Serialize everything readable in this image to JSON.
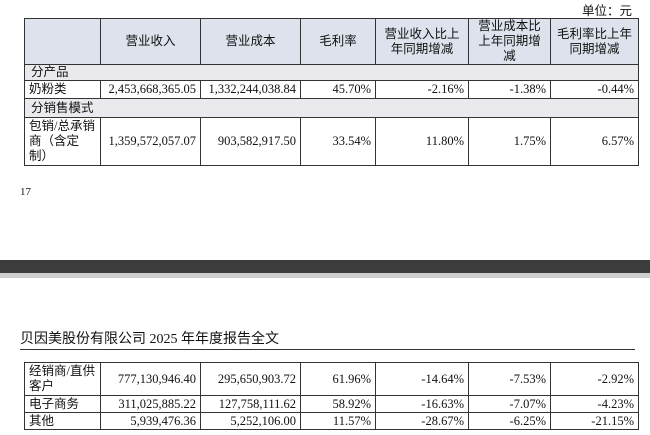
{
  "unit": "单位：元",
  "table_top": {
    "header": [
      "营业收入",
      "营业成本",
      "毛利率",
      "营业收入比上年同期增减",
      "营业成本比上年同期增减",
      "毛利率比上年同期增减"
    ],
    "sections": [
      {
        "title": "分产品",
        "rows": [
          [
            "奶粉类",
            "2,453,668,365.05",
            "1,332,244,038.84",
            "45.70%",
            "-2.16%",
            "-1.38%",
            "-0.44%"
          ]
        ]
      },
      {
        "title": "分销售模式",
        "rows": [
          [
            "包销/总承销商（含定制）",
            "1,359,572,057.07",
            "903,582,917.50",
            "33.54%",
            "11.80%",
            "1.75%",
            "6.57%"
          ]
        ]
      }
    ]
  },
  "page_number": "17",
  "report_header": "贝因美股份有限公司 2025 年年度报告全文",
  "table_bottom": {
    "rows": [
      [
        "经销商/直供客户",
        "777,130,946.40",
        "295,650,903.72",
        "61.96%",
        "-14.64%",
        "-7.53%",
        "-2.92%"
      ],
      [
        "电子商务",
        "311,025,885.22",
        "127,758,111.62",
        "58.92%",
        "-16.63%",
        "-7.07%",
        "-4.23%"
      ],
      [
        "其他",
        "5,939,476.36",
        "5,252,106.00",
        "11.57%",
        "-28.67%",
        "-6.25%",
        "-21.15%"
      ]
    ]
  }
}
